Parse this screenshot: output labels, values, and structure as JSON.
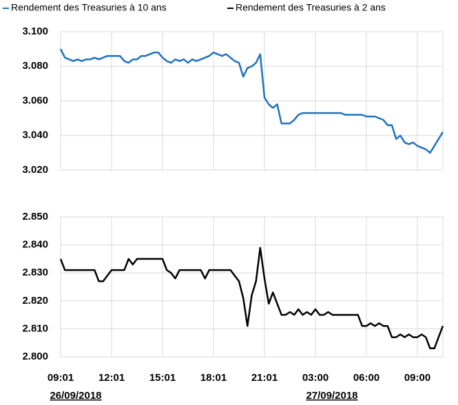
{
  "chart_data": [
    {
      "type": "line",
      "ylim": [
        3.02,
        3.1
      ],
      "yticks": [
        {
          "value": 3.02,
          "label": "3.020"
        },
        {
          "value": 3.04,
          "label": "3.040"
        },
        {
          "value": 3.06,
          "label": "3.060"
        },
        {
          "value": 3.08,
          "label": "3.080"
        },
        {
          "value": 3.1,
          "label": "3.100"
        }
      ],
      "grid": true,
      "series": [
        {
          "name": "Rendement des Treasuries à 10 ans",
          "color": "#1b72c0",
          "values": [
            3.09,
            3.085,
            3.084,
            3.083,
            3.084,
            3.083,
            3.084,
            3.084,
            3.085,
            3.084,
            3.085,
            3.086,
            3.086,
            3.086,
            3.086,
            3.083,
            3.082,
            3.084,
            3.084,
            3.086,
            3.086,
            3.087,
            3.088,
            3.088,
            3.085,
            3.083,
            3.082,
            3.084,
            3.083,
            3.084,
            3.082,
            3.084,
            3.083,
            3.084,
            3.085,
            3.086,
            3.088,
            3.087,
            3.086,
            3.087,
            3.085,
            3.083,
            3.082,
            3.074,
            3.079,
            3.08,
            3.082,
            3.087,
            3.062,
            3.058,
            3.056,
            3.058,
            3.047,
            3.047,
            3.047,
            3.049,
            3.052,
            3.053,
            3.053,
            3.053,
            3.053,
            3.053,
            3.053,
            3.053,
            3.053,
            3.053,
            3.053,
            3.052,
            3.052,
            3.052,
            3.052,
            3.052,
            3.051,
            3.051,
            3.051,
            3.05,
            3.049,
            3.046,
            3.046,
            3.038,
            3.04,
            3.036,
            3.035,
            3.036,
            3.034,
            3.033,
            3.032,
            3.03,
            3.034,
            3.038,
            3.042
          ]
        }
      ]
    },
    {
      "type": "line",
      "ylim": [
        2.8,
        2.85
      ],
      "yticks": [
        {
          "value": 2.8,
          "label": "2.800"
        },
        {
          "value": 2.81,
          "label": "2.810"
        },
        {
          "value": 2.82,
          "label": "2.820"
        },
        {
          "value": 2.83,
          "label": "2.830"
        },
        {
          "value": 2.84,
          "label": "2.840"
        },
        {
          "value": 2.85,
          "label": "2.850"
        }
      ],
      "grid": true,
      "categories": [
        "09:01",
        null,
        null,
        null,
        null,
        null,
        null,
        null,
        null,
        null,
        null,
        null,
        "12:01",
        null,
        null,
        null,
        null,
        null,
        null,
        null,
        null,
        null,
        null,
        null,
        "15:01",
        null,
        null,
        null,
        null,
        null,
        null,
        null,
        null,
        null,
        null,
        null,
        "18:01",
        null,
        null,
        null,
        null,
        null,
        null,
        null,
        null,
        null,
        null,
        null,
        "21:01",
        null,
        null,
        null,
        null,
        null,
        null,
        null,
        null,
        null,
        null,
        null,
        "03:00",
        null,
        null,
        null,
        null,
        null,
        null,
        null,
        null,
        null,
        null,
        null,
        "06:00",
        null,
        null,
        null,
        null,
        null,
        null,
        null,
        null,
        null,
        null,
        null,
        "09:00",
        null,
        null,
        null,
        null,
        null,
        null
      ],
      "date_labels": [
        "26/09/2018",
        "27/09/2018"
      ],
      "series": [
        {
          "name": "Rendement des Treasuries à 2 ans",
          "color": "#000000",
          "values": [
            2.835,
            2.831,
            2.831,
            2.831,
            2.831,
            2.831,
            2.831,
            2.831,
            2.831,
            2.827,
            2.827,
            2.829,
            2.831,
            2.831,
            2.831,
            2.831,
            2.835,
            2.833,
            2.835,
            2.835,
            2.835,
            2.835,
            2.835,
            2.835,
            2.835,
            2.831,
            2.83,
            2.828,
            2.831,
            2.831,
            2.831,
            2.831,
            2.831,
            2.831,
            2.828,
            2.831,
            2.831,
            2.831,
            2.831,
            2.831,
            2.831,
            2.829,
            2.827,
            2.821,
            2.811,
            2.822,
            2.827,
            2.839,
            2.828,
            2.819,
            2.823,
            2.819,
            2.815,
            2.815,
            2.816,
            2.815,
            2.817,
            2.815,
            2.816,
            2.815,
            2.817,
            2.815,
            2.815,
            2.816,
            2.815,
            2.815,
            2.815,
            2.815,
            2.815,
            2.815,
            2.815,
            2.811,
            2.811,
            2.812,
            2.811,
            2.812,
            2.811,
            2.811,
            2.807,
            2.807,
            2.808,
            2.807,
            2.808,
            2.807,
            2.807,
            2.808,
            2.807,
            2.803,
            2.803,
            2.807,
            2.811
          ]
        }
      ]
    }
  ]
}
